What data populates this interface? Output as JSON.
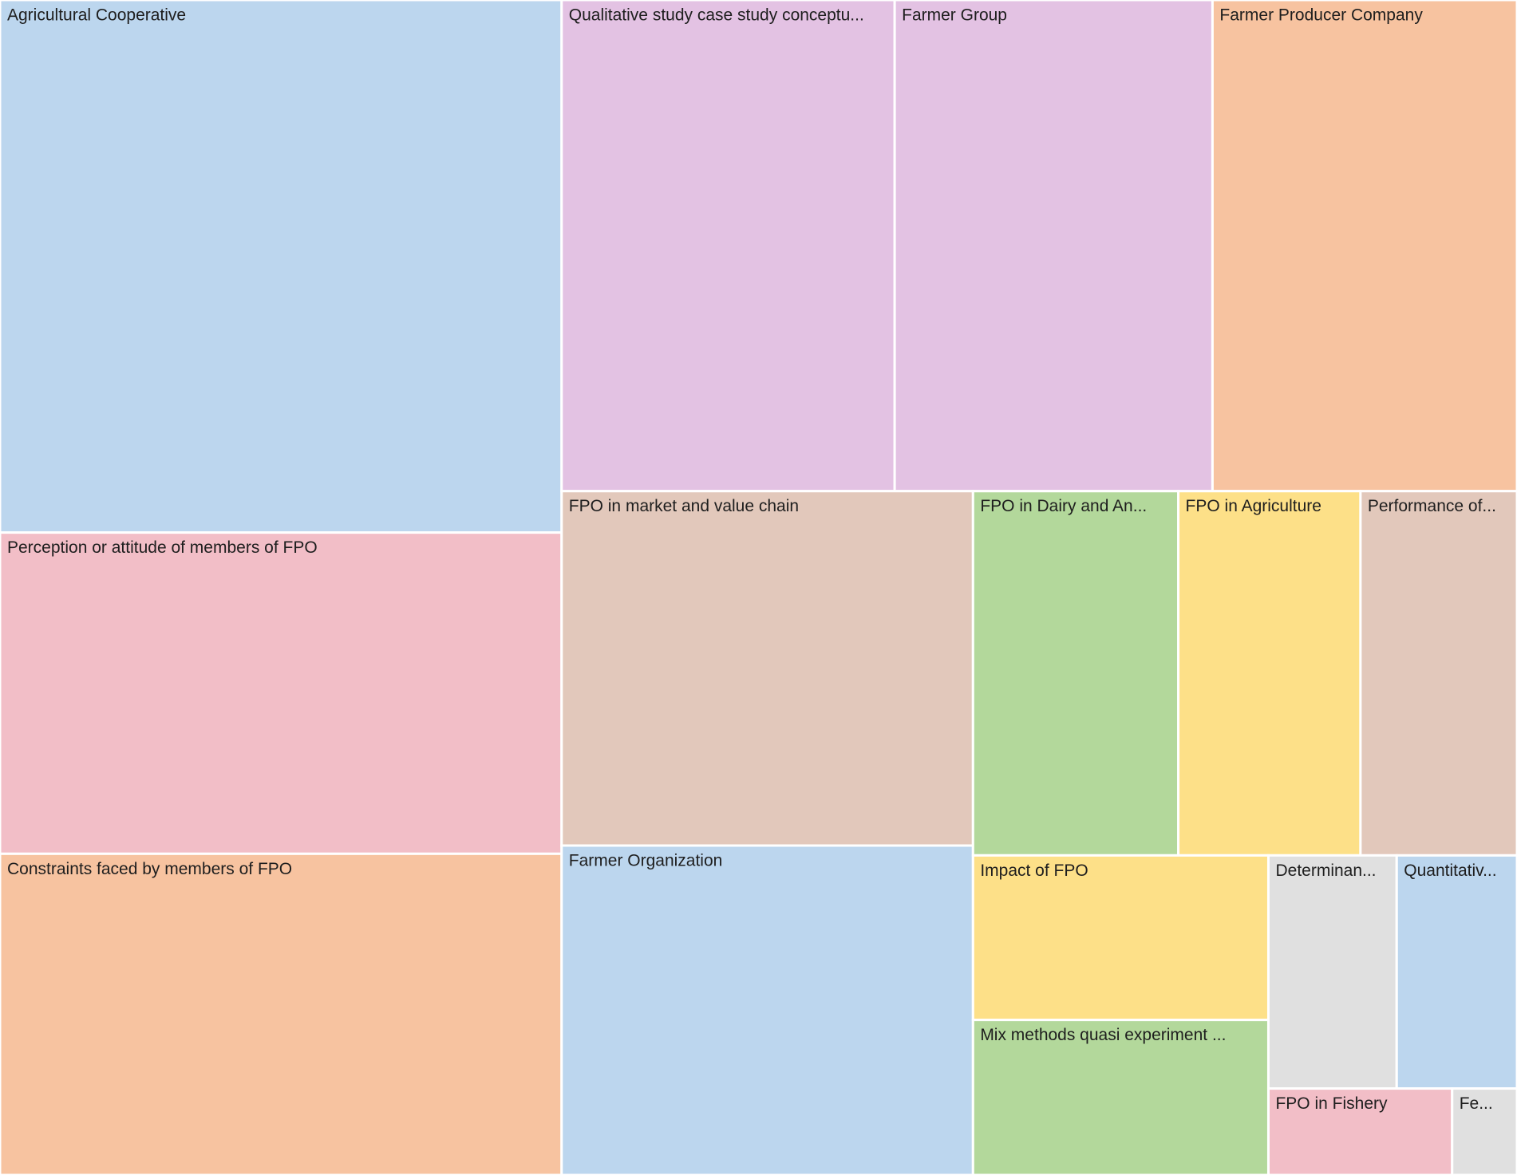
{
  "chart_data": {
    "type": "treemap",
    "categories": [
      "Agricultural Cooperative",
      "Perception or attitude of members of FPO",
      "Constraints faced by members of FPO",
      "Qualitative study case study conceptu...",
      "Farmer Group",
      "Farmer Producer Company",
      "FPO in market and value chain",
      "Farmer Organization",
      "FPO in Dairy and An...",
      "FPO in Agriculture",
      "Performance of...",
      "Impact of FPO",
      "Mix methods quasi experiment ...",
      "Determinan...",
      "Quantitativ...",
      "FPO in Fishery",
      "Fe..."
    ],
    "values": [
      320,
      193,
      193,
      175,
      167,
      160,
      156,
      145,
      80,
      71,
      61,
      52,
      49,
      32,
      30,
      17,
      6
    ],
    "colors": [
      "#bcd6ee",
      "#f2bec7",
      "#f7c3a0",
      "#e3c2e3",
      "#e3c2e3",
      "#f7c3a0",
      "#e2c8bb",
      "#bcd6ee",
      "#b3d89b",
      "#fde088",
      "#e2c8bb",
      "#fde088",
      "#b3d89b",
      "#e0e0e0",
      "#bcd6ee",
      "#f2bec7",
      "#e0e0e0"
    ]
  }
}
